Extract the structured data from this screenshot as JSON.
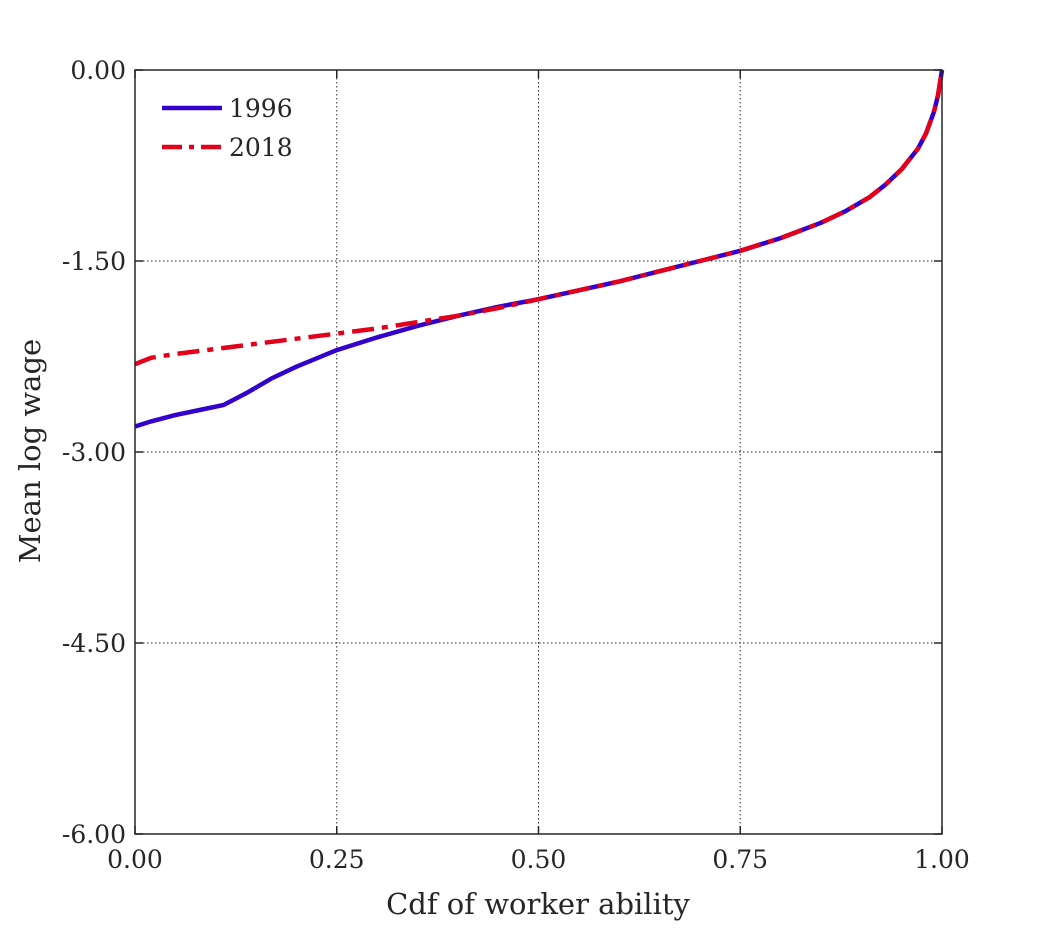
{
  "chart_data": {
    "type": "line",
    "title": "",
    "xlabel": "Cdf of worker ability",
    "ylabel": "Mean log wage",
    "xlim": [
      0,
      1
    ],
    "ylim": [
      -6,
      0
    ],
    "xticks": [
      0,
      0.25,
      0.5,
      0.75,
      1
    ],
    "xtick_labels": [
      "0.00",
      "0.25",
      "0.50",
      "0.75",
      "1.00"
    ],
    "yticks": [
      0,
      -1.5,
      -3,
      -4.5,
      -6
    ],
    "ytick_labels": [
      "0.00",
      "-1.50",
      "-3.00",
      "-4.50",
      "-6.00"
    ],
    "grid": true,
    "legend_position": "top-left",
    "series": [
      {
        "name": "1996",
        "color": "#3300cc",
        "style": "solid",
        "x": [
          0,
          0.02,
          0.05,
          0.08,
          0.11,
          0.14,
          0.17,
          0.2,
          0.25,
          0.3,
          0.35,
          0.4,
          0.45,
          0.5,
          0.55,
          0.6,
          0.65,
          0.7,
          0.75,
          0.8,
          0.85,
          0.88,
          0.91,
          0.93,
          0.95,
          0.97,
          0.98,
          0.99,
          0.995,
          1.0
        ],
        "y": [
          -2.8,
          -2.76,
          -2.71,
          -2.67,
          -2.63,
          -2.53,
          -2.42,
          -2.33,
          -2.2,
          -2.1,
          -2.01,
          -1.93,
          -1.86,
          -1.8,
          -1.73,
          -1.66,
          -1.58,
          -1.5,
          -1.42,
          -1.32,
          -1.2,
          -1.11,
          -1.0,
          -0.9,
          -0.78,
          -0.62,
          -0.5,
          -0.33,
          -0.2,
          0
        ]
      },
      {
        "name": "2018",
        "color": "#e2001a",
        "style": "dashdot",
        "x": [
          0,
          0.02,
          0.05,
          0.1,
          0.15,
          0.2,
          0.25,
          0.3,
          0.35,
          0.4,
          0.45,
          0.5,
          0.55,
          0.6,
          0.65,
          0.7,
          0.75,
          0.8,
          0.85,
          0.88,
          0.91,
          0.93,
          0.95,
          0.97,
          0.98,
          0.99,
          0.995,
          1.0
        ],
        "y": [
          -2.31,
          -2.26,
          -2.23,
          -2.19,
          -2.15,
          -2.11,
          -2.07,
          -2.03,
          -1.98,
          -1.93,
          -1.87,
          -1.8,
          -1.73,
          -1.66,
          -1.58,
          -1.5,
          -1.42,
          -1.32,
          -1.2,
          -1.11,
          -1.0,
          -0.9,
          -0.78,
          -0.62,
          -0.5,
          -0.33,
          -0.2,
          0
        ]
      }
    ]
  }
}
